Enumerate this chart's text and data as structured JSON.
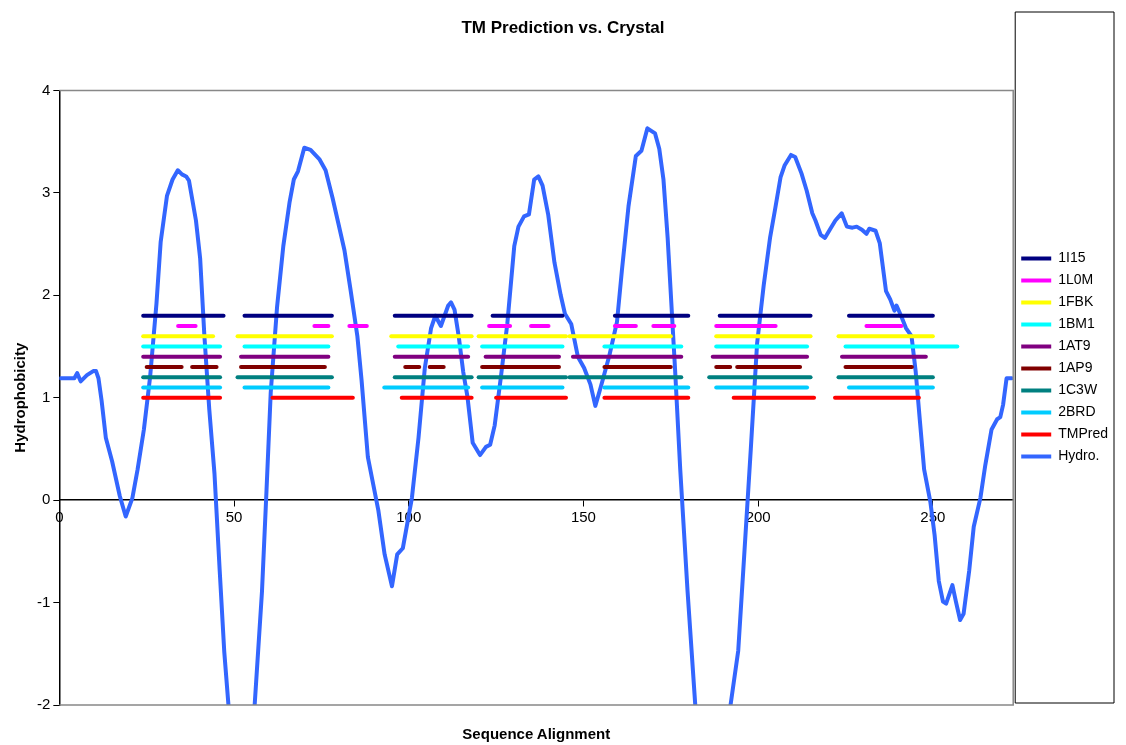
{
  "chart_data": {
    "type": "line",
    "title": "TM Prediction vs. Crystal",
    "xlabel": "Sequence Alignment",
    "ylabel": "Hydrophobicity",
    "xlim": [
      0,
      273
    ],
    "xticks": [
      0,
      50,
      100,
      150,
      200,
      250
    ],
    "ylim": [
      -2,
      4
    ],
    "yticks": [
      -2,
      -1,
      0,
      1,
      2,
      3,
      4
    ],
    "grid": false,
    "legend": "right",
    "marker": "none",
    "line_style": "solid",
    "series": [
      {
        "name": "1I15",
        "type": "line",
        "color": "#000080",
        "x": [
          24,
          47
        ],
        "values": [
          1.8,
          1.8
        ]
      },
      {
        "type": "line",
        "color": "#000080",
        "x": [
          53,
          78
        ],
        "values": [
          1.8,
          1.8
        ]
      },
      {
        "type": "line",
        "color": "#000080",
        "x": [
          96,
          118
        ],
        "values": [
          1.8,
          1.8
        ]
      },
      {
        "type": "line",
        "color": "#000080",
        "x": [
          124,
          144
        ],
        "values": [
          1.8,
          1.8
        ]
      },
      {
        "type": "line",
        "color": "#000080",
        "x": [
          159,
          180
        ],
        "values": [
          1.8,
          1.8
        ]
      },
      {
        "type": "line",
        "color": "#000080",
        "x": [
          189,
          215
        ],
        "values": [
          1.8,
          1.8
        ]
      },
      {
        "type": "line",
        "color": "#000080",
        "x": [
          226,
          250
        ],
        "values": [
          1.8,
          1.8
        ]
      },
      {
        "name": "1L0M",
        "type": "line",
        "color": "#ff00ff",
        "x": [
          34,
          39
        ],
        "values": [
          1.7,
          1.7
        ]
      },
      {
        "type": "line",
        "color": "#ff00ff",
        "x": [
          73,
          77
        ],
        "values": [
          1.7,
          1.7
        ]
      },
      {
        "type": "line",
        "color": "#ff00ff",
        "x": [
          83,
          88
        ],
        "values": [
          1.7,
          1.7
        ]
      },
      {
        "type": "line",
        "color": "#ff00ff",
        "x": [
          123,
          129
        ],
        "values": [
          1.7,
          1.7
        ]
      },
      {
        "type": "line",
        "color": "#ff00ff",
        "x": [
          135,
          140
        ],
        "values": [
          1.7,
          1.7
        ]
      },
      {
        "type": "line",
        "color": "#ff00ff",
        "x": [
          159,
          165
        ],
        "values": [
          1.7,
          1.7
        ]
      },
      {
        "type": "line",
        "color": "#ff00ff",
        "x": [
          170,
          176
        ],
        "values": [
          1.7,
          1.7
        ]
      },
      {
        "type": "line",
        "color": "#ff00ff",
        "x": [
          188,
          205
        ],
        "values": [
          1.7,
          1.7
        ]
      },
      {
        "type": "line",
        "color": "#ff00ff",
        "x": [
          231,
          241
        ],
        "values": [
          1.7,
          1.7
        ]
      },
      {
        "name": "1FBK",
        "type": "line",
        "color": "#ffff00",
        "x": [
          24,
          44
        ],
        "values": [
          1.6,
          1.6
        ]
      },
      {
        "type": "line",
        "color": "#ffff00",
        "x": [
          51,
          78
        ],
        "values": [
          1.6,
          1.6
        ]
      },
      {
        "type": "line",
        "color": "#ffff00",
        "x": [
          95,
          118
        ],
        "values": [
          1.6,
          1.6
        ]
      },
      {
        "type": "line",
        "color": "#ffff00",
        "x": [
          120,
          145
        ],
        "values": [
          1.6,
          1.6
        ]
      },
      {
        "type": "line",
        "color": "#ffff00",
        "x": [
          146,
          175
        ],
        "values": [
          1.6,
          1.6
        ]
      },
      {
        "type": "line",
        "color": "#ffff00",
        "x": [
          188,
          215
        ],
        "values": [
          1.6,
          1.6
        ]
      },
      {
        "type": "line",
        "color": "#ffff00",
        "x": [
          223,
          250
        ],
        "values": [
          1.6,
          1.6
        ]
      },
      {
        "name": "1BM1",
        "type": "line",
        "color": "#00ffff",
        "x": [
          24,
          46
        ],
        "values": [
          1.5,
          1.5
        ]
      },
      {
        "type": "line",
        "color": "#00ffff",
        "x": [
          53,
          77
        ],
        "values": [
          1.5,
          1.5
        ]
      },
      {
        "type": "line",
        "color": "#00ffff",
        "x": [
          97,
          117
        ],
        "values": [
          1.5,
          1.5
        ]
      },
      {
        "type": "line",
        "color": "#00ffff",
        "x": [
          121,
          144
        ],
        "values": [
          1.5,
          1.5
        ]
      },
      {
        "type": "line",
        "color": "#00ffff",
        "x": [
          156,
          178
        ],
        "values": [
          1.5,
          1.5
        ]
      },
      {
        "type": "line",
        "color": "#00ffff",
        "x": [
          188,
          214
        ],
        "values": [
          1.5,
          1.5
        ]
      },
      {
        "type": "line",
        "color": "#00ffff",
        "x": [
          225,
          257
        ],
        "values": [
          1.5,
          1.5
        ]
      },
      {
        "name": "1AT9",
        "type": "line",
        "color": "#800080",
        "x": [
          24,
          46
        ],
        "values": [
          1.4,
          1.4
        ]
      },
      {
        "type": "line",
        "color": "#800080",
        "x": [
          52,
          77
        ],
        "values": [
          1.4,
          1.4
        ]
      },
      {
        "type": "line",
        "color": "#800080",
        "x": [
          96,
          117
        ],
        "values": [
          1.4,
          1.4
        ]
      },
      {
        "type": "line",
        "color": "#800080",
        "x": [
          122,
          143
        ],
        "values": [
          1.4,
          1.4
        ]
      },
      {
        "type": "line",
        "color": "#800080",
        "x": [
          147,
          178
        ],
        "values": [
          1.4,
          1.4
        ]
      },
      {
        "type": "line",
        "color": "#800080",
        "x": [
          187,
          214
        ],
        "values": [
          1.4,
          1.4
        ]
      },
      {
        "type": "line",
        "color": "#800080",
        "x": [
          224,
          248
        ],
        "values": [
          1.4,
          1.4
        ]
      },
      {
        "name": "1AP9",
        "type": "line",
        "color": "#800000",
        "x": [
          25,
          35
        ],
        "values": [
          1.3,
          1.3
        ]
      },
      {
        "type": "line",
        "color": "#800000",
        "x": [
          38,
          45
        ],
        "values": [
          1.3,
          1.3
        ]
      },
      {
        "type": "line",
        "color": "#800000",
        "x": [
          52,
          76
        ],
        "values": [
          1.3,
          1.3
        ]
      },
      {
        "type": "line",
        "color": "#800000",
        "x": [
          99,
          103
        ],
        "values": [
          1.3,
          1.3
        ]
      },
      {
        "type": "line",
        "color": "#800000",
        "x": [
          106,
          110
        ],
        "values": [
          1.3,
          1.3
        ]
      },
      {
        "type": "line",
        "color": "#800000",
        "x": [
          121,
          143
        ],
        "values": [
          1.3,
          1.3
        ]
      },
      {
        "type": "line",
        "color": "#800000",
        "x": [
          156,
          175
        ],
        "values": [
          1.3,
          1.3
        ]
      },
      {
        "type": "line",
        "color": "#800000",
        "x": [
          188,
          192
        ],
        "values": [
          1.3,
          1.3
        ]
      },
      {
        "type": "line",
        "color": "#800000",
        "x": [
          194,
          212
        ],
        "values": [
          1.3,
          1.3
        ]
      },
      {
        "type": "line",
        "color": "#800000",
        "x": [
          225,
          244
        ],
        "values": [
          1.3,
          1.3
        ]
      },
      {
        "name": "1C3W",
        "type": "line",
        "color": "#008080",
        "x": [
          24,
          46
        ],
        "values": [
          1.2,
          1.2
        ]
      },
      {
        "type": "line",
        "color": "#008080",
        "x": [
          51,
          78
        ],
        "values": [
          1.2,
          1.2
        ]
      },
      {
        "type": "line",
        "color": "#008080",
        "x": [
          96,
          118
        ],
        "values": [
          1.2,
          1.2
        ]
      },
      {
        "type": "line",
        "color": "#008080",
        "x": [
          120,
          145
        ],
        "values": [
          1.2,
          1.2
        ]
      },
      {
        "type": "line",
        "color": "#008080",
        "x": [
          146,
          178
        ],
        "values": [
          1.2,
          1.2
        ]
      },
      {
        "type": "line",
        "color": "#008080",
        "x": [
          186,
          215
        ],
        "values": [
          1.2,
          1.2
        ]
      },
      {
        "type": "line",
        "color": "#008080",
        "x": [
          223,
          250
        ],
        "values": [
          1.2,
          1.2
        ]
      },
      {
        "name": "2BRD",
        "type": "line",
        "color": "#00ccff",
        "x": [
          24,
          46
        ],
        "values": [
          1.1,
          1.1
        ]
      },
      {
        "type": "line",
        "color": "#00ccff",
        "x": [
          53,
          77
        ],
        "values": [
          1.1,
          1.1
        ]
      },
      {
        "type": "line",
        "color": "#00ccff",
        "x": [
          93,
          117
        ],
        "values": [
          1.1,
          1.1
        ]
      },
      {
        "type": "line",
        "color": "#00ccff",
        "x": [
          121,
          144
        ],
        "values": [
          1.1,
          1.1
        ]
      },
      {
        "type": "line",
        "color": "#00ccff",
        "x": [
          156,
          180
        ],
        "values": [
          1.1,
          1.1
        ]
      },
      {
        "type": "line",
        "color": "#00ccff",
        "x": [
          188,
          214
        ],
        "values": [
          1.1,
          1.1
        ]
      },
      {
        "type": "line",
        "color": "#00ccff",
        "x": [
          226,
          250
        ],
        "values": [
          1.1,
          1.1
        ]
      },
      {
        "name": "TMPred",
        "type": "line",
        "color": "#ff0000",
        "x": [
          24,
          46
        ],
        "values": [
          1.0,
          1.0
        ]
      },
      {
        "type": "line",
        "color": "#ff0000",
        "x": [
          61,
          84
        ],
        "values": [
          1.0,
          1.0
        ]
      },
      {
        "type": "line",
        "color": "#ff0000",
        "x": [
          98,
          118
        ],
        "values": [
          1.0,
          1.0
        ]
      },
      {
        "type": "line",
        "color": "#ff0000",
        "x": [
          125,
          145
        ],
        "values": [
          1.0,
          1.0
        ]
      },
      {
        "type": "line",
        "color": "#ff0000",
        "x": [
          156,
          180
        ],
        "values": [
          1.0,
          1.0
        ]
      },
      {
        "type": "line",
        "color": "#ff0000",
        "x": [
          193,
          216
        ],
        "values": [
          1.0,
          1.0
        ]
      },
      {
        "type": "line",
        "color": "#ff0000",
        "x": [
          222,
          246
        ],
        "values": [
          1.0,
          1.0
        ]
      },
      {
        "name": "Hydro.",
        "type": "line",
        "color": "#3366ff",
        "x": [
          0.4,
          4.3,
          5.1,
          6.1,
          7.9,
          9.7,
          10.5,
          11.2,
          12.1,
          13.3,
          15.1,
          17.3,
          19,
          20.9,
          22.4,
          24.2,
          26,
          27.8,
          29,
          30.8,
          32.4,
          33.9,
          35.1,
          36.3,
          37.1,
          39.1,
          40.3,
          41.5,
          42.9,
          44.4,
          45.9,
          47.2,
          48.4
        ],
        "values": [
          1.19,
          1.19,
          1.24,
          1.16,
          1.22,
          1.26,
          1.26,
          1.19,
          0.97,
          0.61,
          0.38,
          0.04,
          -0.16,
          0.02,
          0.3,
          0.69,
          1.21,
          1.92,
          2.52,
          2.97,
          3.13,
          3.22,
          3.18,
          3.16,
          3.12,
          2.73,
          2.36,
          1.61,
          0.89,
          0.26,
          -0.69,
          -1.48,
          -2
        ]
      },
      {
        "type": "line",
        "color": "#3366ff",
        "x": [
          55.9,
          58,
          59.3,
          60.5,
          62.3,
          64.1,
          65.9,
          67.1,
          68.3,
          70.1,
          71.9,
          74.4,
          76.2,
          78.2,
          79.8,
          81.6,
          83.4,
          85.3,
          86.5,
          88.3,
          91.3,
          93.1,
          95.2,
          96.7,
          98.3,
          100.9,
          102.8,
          104.6,
          106.4,
          107.6,
          109.2,
          111.3,
          112.1,
          113.1,
          114.3,
          115.6,
          116.8,
          118.3,
          120.4,
          122.1,
          123.3,
          124.6,
          126.4,
          128.2,
          130.2,
          131.4,
          133,
          134.4,
          135.9,
          137.1,
          138.3,
          139.9,
          141.7,
          143.5,
          144.7,
          146.5,
          148.4,
          150.2,
          152,
          153.4,
          155,
          157.4,
          159.6,
          161,
          162.9,
          165,
          166.6,
          168.3,
          170.5,
          171.7,
          172.9,
          174.1,
          176.2,
          177.7,
          179.8,
          182
        ],
        "values": [
          -2,
          -0.89,
          0.1,
          1.05,
          1.88,
          2.48,
          2.91,
          3.13,
          3.21,
          3.44,
          3.42,
          3.33,
          3.22,
          2.95,
          2.71,
          2.44,
          2.04,
          1.6,
          1.17,
          0.42,
          -0.1,
          -0.53,
          -0.84,
          -0.53,
          -0.47,
          0.02,
          0.61,
          1.29,
          1.68,
          1.8,
          1.7,
          1.9,
          1.93,
          1.86,
          1.6,
          1.25,
          1.01,
          0.56,
          0.44,
          0.52,
          0.54,
          0.73,
          1.21,
          1.72,
          2.48,
          2.67,
          2.77,
          2.79,
          3.13,
          3.16,
          3.07,
          2.79,
          2.32,
          2,
          1.82,
          1.72,
          1.4,
          1.29,
          1.13,
          0.92,
          1.11,
          1.41,
          1.74,
          2.24,
          2.87,
          3.36,
          3.41,
          3.63,
          3.58,
          3.43,
          3.13,
          2.56,
          1.29,
          0.3,
          -0.89,
          -2
        ]
      },
      {
        "type": "line",
        "color": "#3366ff",
        "x": [
          192.1,
          194.3,
          196.1,
          197.9,
          199.7,
          201.6,
          203.4,
          204.8,
          206.4,
          207.6,
          209.4,
          210.6,
          212.4,
          213.9,
          215.5,
          216.4,
          217.9,
          219.1,
          220.5,
          222.1,
          223.9,
          225.4,
          227,
          228.2,
          229.7,
          231,
          231.8,
          233.6,
          234.8,
          236.6,
          237.8,
          239,
          239.6,
          240.9,
          242.3,
          243.9,
          245.1,
          246.3,
          247.5,
          249.3,
          250.5,
          251.7,
          252.9,
          253.8,
          255.6,
          256.6,
          257.8,
          258.8,
          260.4,
          261.7,
          263.6,
          265,
          266.8,
          268.4,
          269.3,
          270.1,
          271.1,
          272.6
        ],
        "values": [
          -2,
          -1.47,
          -0.49,
          0.5,
          1.53,
          2.1,
          2.56,
          2.83,
          3.15,
          3.27,
          3.37,
          3.35,
          3.19,
          3.02,
          2.8,
          2.73,
          2.59,
          2.56,
          2.64,
          2.73,
          2.8,
          2.67,
          2.66,
          2.67,
          2.64,
          2.6,
          2.65,
          2.63,
          2.51,
          2.04,
          1.96,
          1.85,
          1.9,
          1.8,
          1.68,
          1.6,
          1.25,
          0.77,
          0.3,
          -0.02,
          -0.34,
          -0.79,
          -0.99,
          -1.01,
          -0.83,
          -0.99,
          -1.17,
          -1.11,
          -0.69,
          -0.26,
          0.02,
          0.34,
          0.69,
          0.79,
          0.81,
          0.93,
          1.19,
          1.19
        ]
      }
    ]
  }
}
